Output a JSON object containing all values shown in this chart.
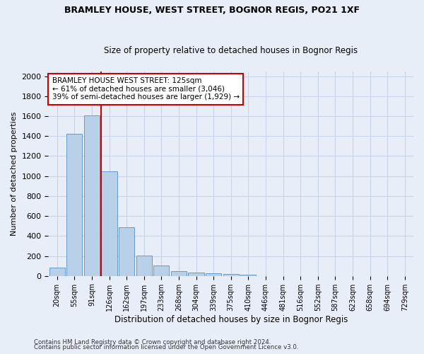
{
  "title1": "BRAMLEY HOUSE, WEST STREET, BOGNOR REGIS, PO21 1XF",
  "title2": "Size of property relative to detached houses in Bognor Regis",
  "xlabel": "Distribution of detached houses by size in Bognor Regis",
  "ylabel": "Number of detached properties",
  "categories": [
    "20sqm",
    "55sqm",
    "91sqm",
    "126sqm",
    "162sqm",
    "197sqm",
    "233sqm",
    "268sqm",
    "304sqm",
    "339sqm",
    "375sqm",
    "410sqm",
    "446sqm",
    "481sqm",
    "516sqm",
    "552sqm",
    "587sqm",
    "623sqm",
    "658sqm",
    "694sqm",
    "729sqm"
  ],
  "values": [
    80,
    1420,
    1610,
    1050,
    490,
    205,
    105,
    50,
    35,
    25,
    20,
    15,
    0,
    0,
    0,
    0,
    0,
    0,
    0,
    0,
    0
  ],
  "bar_color": "#b8d0e8",
  "bar_edge_color": "#6699cc",
  "vline_color": "#cc0000",
  "annotation_text": "BRAMLEY HOUSE WEST STREET: 125sqm\n← 61% of detached houses are smaller (3,046)\n39% of semi-detached houses are larger (1,929) →",
  "annotation_box_color": "white",
  "annotation_box_edge_color": "#cc0000",
  "ylim": [
    0,
    2050
  ],
  "yticks": [
    0,
    200,
    400,
    600,
    800,
    1000,
    1200,
    1400,
    1600,
    1800,
    2000
  ],
  "footer1": "Contains HM Land Registry data © Crown copyright and database right 2024.",
  "footer2": "Contains public sector information licensed under the Open Government Licence v3.0.",
  "bg_color": "#e8eef8",
  "plot_bg_color": "#e8eef8",
  "grid_color": "#c8d4e8"
}
